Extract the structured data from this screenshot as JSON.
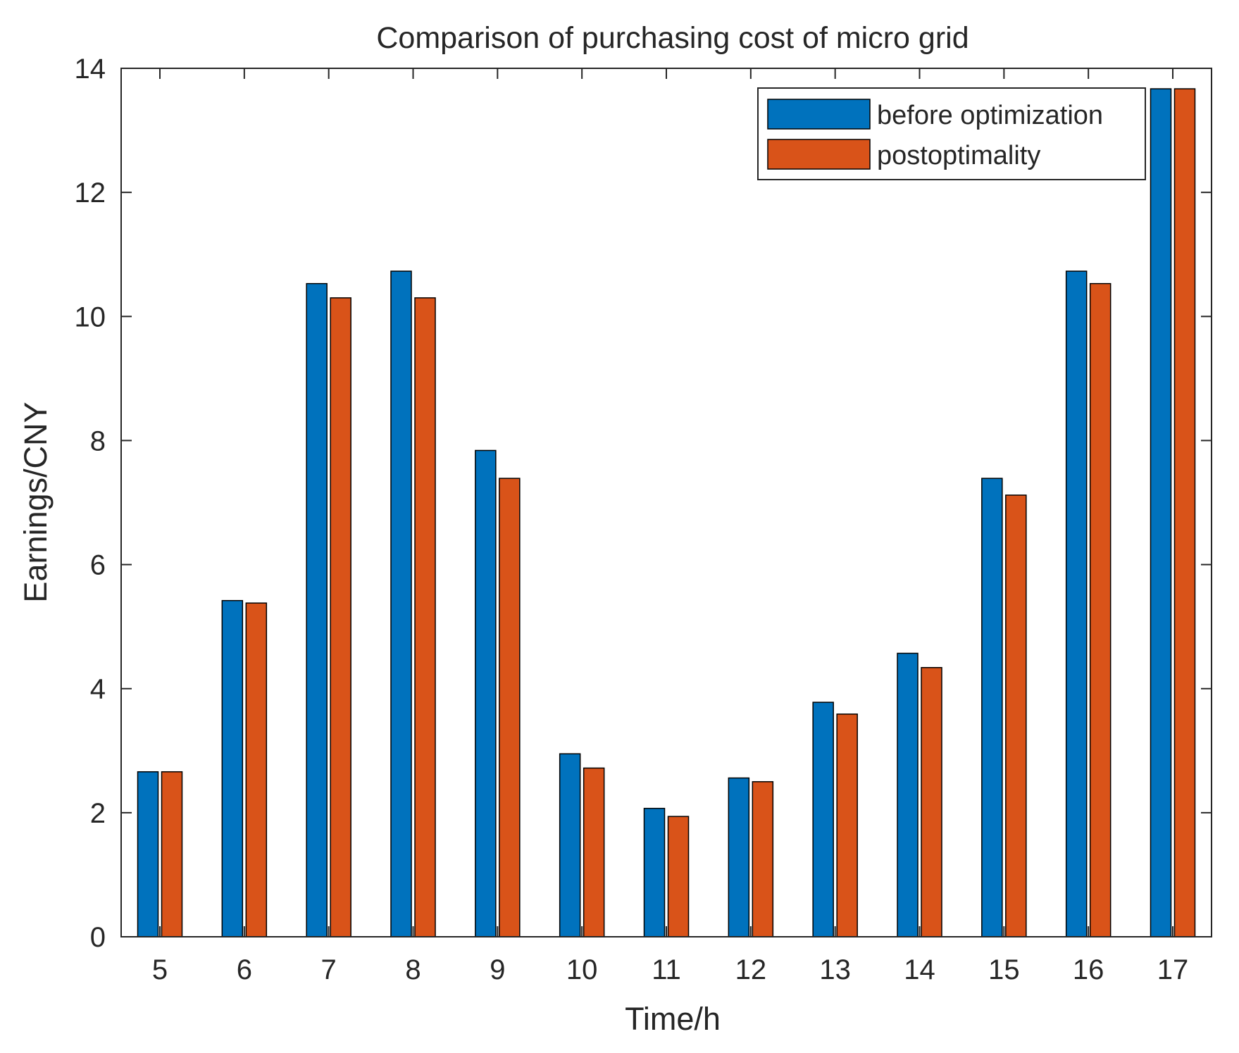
{
  "chart_data": {
    "type": "bar",
    "title": "Comparison of purchasing cost of micro grid",
    "xlabel": "Time/h",
    "ylabel": "Earnings/CNY",
    "categories": [
      "5",
      "6",
      "7",
      "8",
      "9",
      "10",
      "11",
      "12",
      "13",
      "14",
      "15",
      "16",
      "17"
    ],
    "series": [
      {
        "name": "before optimization",
        "color": "#0072BD",
        "values": [
          2.66,
          5.42,
          10.53,
          10.73,
          7.84,
          2.95,
          2.07,
          2.56,
          3.78,
          4.57,
          7.39,
          10.73,
          13.67
        ]
      },
      {
        "name": "postoptimality",
        "color": "#D95319",
        "values": [
          2.66,
          5.38,
          10.3,
          10.3,
          7.39,
          2.72,
          1.94,
          2.5,
          3.59,
          4.34,
          7.12,
          10.53,
          13.67
        ]
      }
    ],
    "ylim": [
      0,
      14
    ],
    "yticks": [
      0,
      2,
      4,
      6,
      8,
      10,
      12,
      14
    ],
    "grid": false,
    "legend_position": "top-right"
  }
}
